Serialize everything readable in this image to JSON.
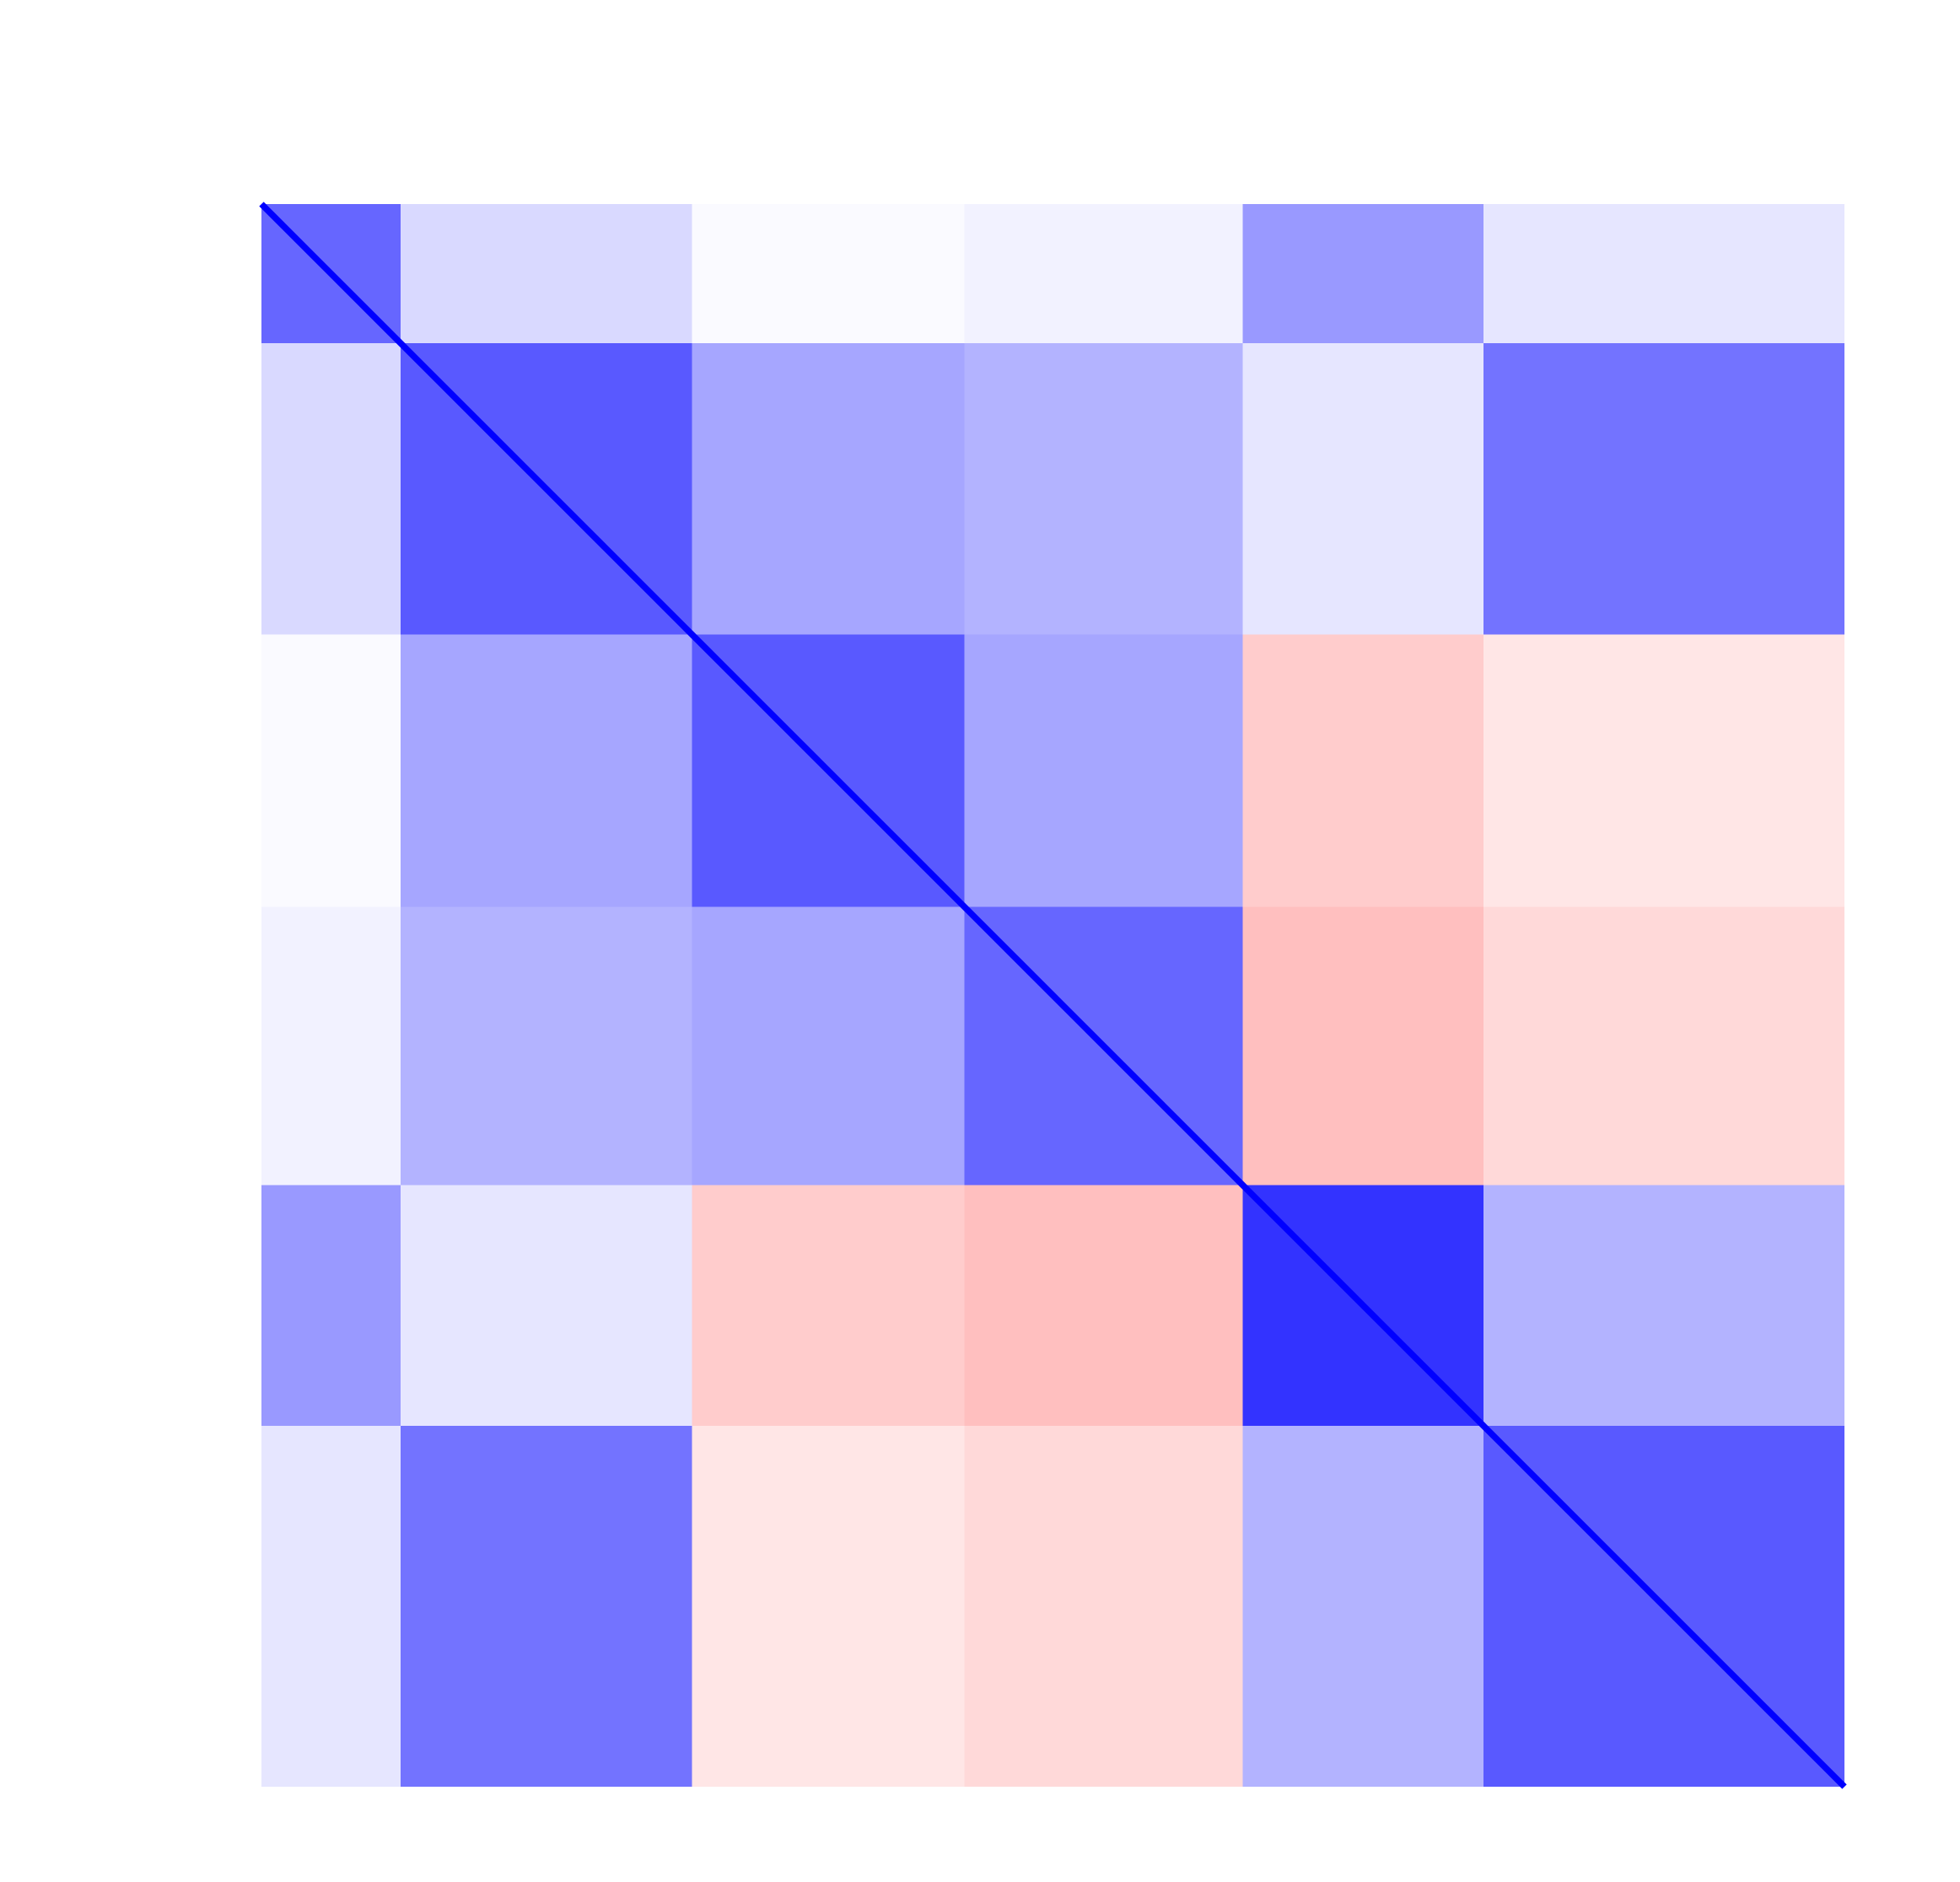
{
  "chart_data": {
    "type": "heatmap",
    "cluster_sizes": [
      22,
      46,
      43,
      44,
      38,
      57
    ],
    "matrix": [
      [
        0.6,
        0.15,
        0.02,
        0.05,
        0.4,
        0.1
      ],
      [
        0.15,
        0.65,
        0.35,
        0.3,
        0.1,
        0.55
      ],
      [
        0.02,
        0.35,
        0.65,
        0.35,
        -0.2,
        -0.1
      ],
      [
        0.05,
        0.3,
        0.35,
        0.6,
        -0.25,
        -0.15
      ],
      [
        0.4,
        0.1,
        -0.2,
        -0.25,
        0.8,
        0.3
      ],
      [
        0.1,
        0.55,
        -0.1,
        -0.15,
        0.3,
        0.65
      ]
    ],
    "diagonal_value": 1,
    "vlim": [
      -1,
      1
    ],
    "colors": {
      "negative": "#ff0000",
      "zero": "#ffffff",
      "positive": "#0000ff"
    }
  }
}
